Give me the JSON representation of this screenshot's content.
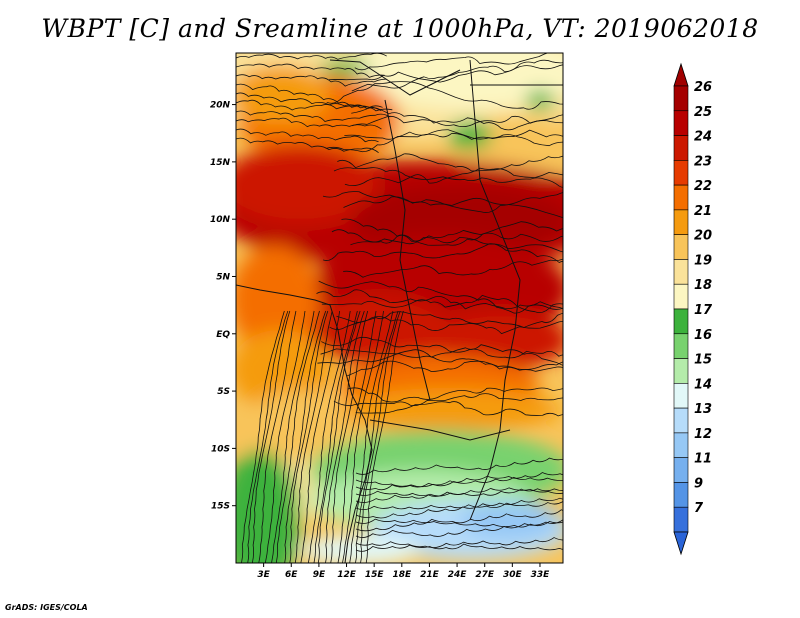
{
  "title": "WBPT [C] and Sreamline at 1000hPa, VT: 2019062018",
  "footer": "GrADS: IGES/COLA",
  "chart_data": {
    "type": "heatmap",
    "title": "WBPT [C] and Sreamline at 1000hPa, VT: 2019062018",
    "variable": "Wet-bulb potential temperature [C]",
    "level": "1000hPa",
    "valid_time": "2019062018",
    "overlay": "streamlines",
    "x_range_deg": [
      0,
      35.5
    ],
    "y_range_deg": [
      -20,
      24.5
    ],
    "x_ticks": [
      {
        "value": 3,
        "label": "3E"
      },
      {
        "value": 6,
        "label": "6E"
      },
      {
        "value": 9,
        "label": "9E"
      },
      {
        "value": 12,
        "label": "12E"
      },
      {
        "value": 15,
        "label": "15E"
      },
      {
        "value": 18,
        "label": "18E"
      },
      {
        "value": 21,
        "label": "21E"
      },
      {
        "value": 24,
        "label": "24E"
      },
      {
        "value": 27,
        "label": "27E"
      },
      {
        "value": 30,
        "label": "30E"
      },
      {
        "value": 33,
        "label": "33E"
      }
    ],
    "y_ticks": [
      {
        "value": 20,
        "label": "20N"
      },
      {
        "value": 15,
        "label": "15N"
      },
      {
        "value": 10,
        "label": "10N"
      },
      {
        "value": 5,
        "label": "5N"
      },
      {
        "value": 0,
        "label": "EQ"
      },
      {
        "value": -5,
        "label": "5S"
      },
      {
        "value": -10,
        "label": "10S"
      },
      {
        "value": -15,
        "label": "15S"
      }
    ],
    "colorbar": {
      "levels": [
        {
          "label": "26",
          "color": "#a50000"
        },
        {
          "label": "25",
          "color": "#b80000"
        },
        {
          "label": "24",
          "color": "#cc1800"
        },
        {
          "label": "23",
          "color": "#e63b00"
        },
        {
          "label": "22",
          "color": "#f46e00"
        },
        {
          "label": "21",
          "color": "#f59b10"
        },
        {
          "label": "20",
          "color": "#f8c45a"
        },
        {
          "label": "19",
          "color": "#fae29a"
        },
        {
          "label": "18",
          "color": "#fcf6c2"
        },
        {
          "label": "17",
          "color": "#3cb23c"
        },
        {
          "label": "16",
          "color": "#78d26e"
        },
        {
          "label": "15",
          "color": "#b4ecaa"
        },
        {
          "label": "14",
          "color": "#e2f8f8"
        },
        {
          "label": "13",
          "color": "#b6dcfa"
        },
        {
          "label": "12",
          "color": "#96c8f5"
        },
        {
          "label": "11",
          "color": "#76b0ef"
        },
        {
          "label": "9",
          "color": "#5494e6"
        },
        {
          "label": "7",
          "color": "#3670dc"
        }
      ],
      "bottom_tip_color": "#2a64d8",
      "top_tip_color": "#a00000"
    }
  }
}
